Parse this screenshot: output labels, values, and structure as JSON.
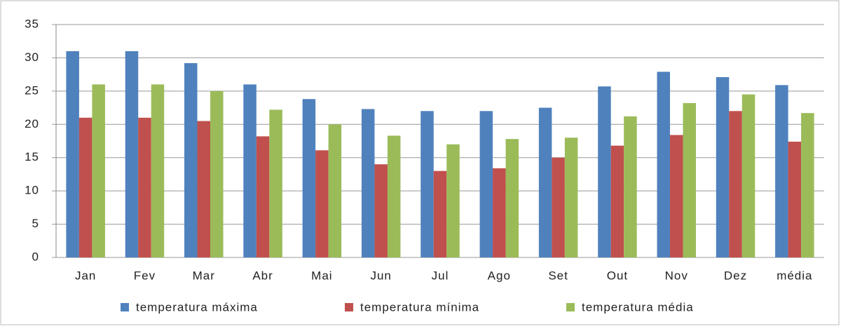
{
  "chart_data": {
    "type": "bar",
    "categories": [
      "Jan",
      "Fev",
      "Mar",
      "Abr",
      "Mai",
      "Jun",
      "Jul",
      "Ago",
      "Set",
      "Out",
      "Nov",
      "Dez",
      "média"
    ],
    "series": [
      {
        "name": "temperatura máxima",
        "color": "#4f81bd",
        "values": [
          31,
          31,
          29.2,
          26,
          23.8,
          22.3,
          22,
          22,
          22.5,
          25.7,
          27.9,
          27.1,
          25.9
        ]
      },
      {
        "name": "temperatura mínima",
        "color": "#c0504d",
        "values": [
          21,
          21,
          20.5,
          18.2,
          16.1,
          14,
          13,
          13.4,
          15,
          16.8,
          18.4,
          22,
          17.4
        ]
      },
      {
        "name": "temperatura média",
        "color": "#9bbb59",
        "values": [
          26,
          26,
          25,
          22.2,
          20,
          18.3,
          17,
          17.8,
          18,
          21.2,
          23.2,
          24.5,
          21.7
        ]
      }
    ],
    "ylim": [
      0,
      35
    ],
    "yticks": [
      0,
      5,
      10,
      15,
      20,
      25,
      30,
      35
    ],
    "grid": true,
    "legend": "bottom"
  }
}
